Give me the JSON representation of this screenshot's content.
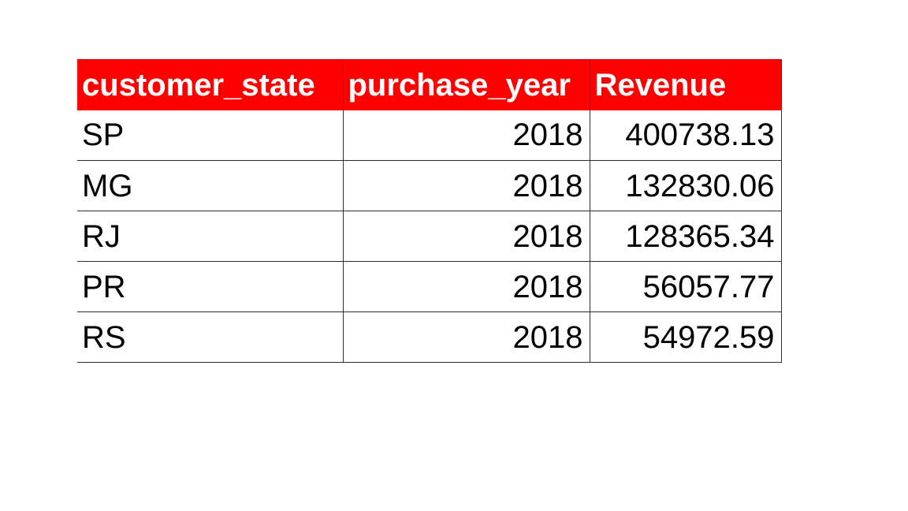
{
  "table": {
    "headers": [
      "customer_state",
      "purchase_year",
      "Revenue"
    ],
    "rows": [
      [
        "SP",
        "2018",
        "400738.13"
      ],
      [
        "MG",
        "2018",
        "132830.06"
      ],
      [
        "RJ",
        "2018",
        "128365.34"
      ],
      [
        "PR",
        "2018",
        "56057.77"
      ],
      [
        "RS",
        "2018",
        "54972.59"
      ]
    ]
  },
  "colors": {
    "header_background": "#ff0000",
    "header_text": "#ffffff",
    "body_text": "#000000",
    "gridline": "#303030"
  }
}
